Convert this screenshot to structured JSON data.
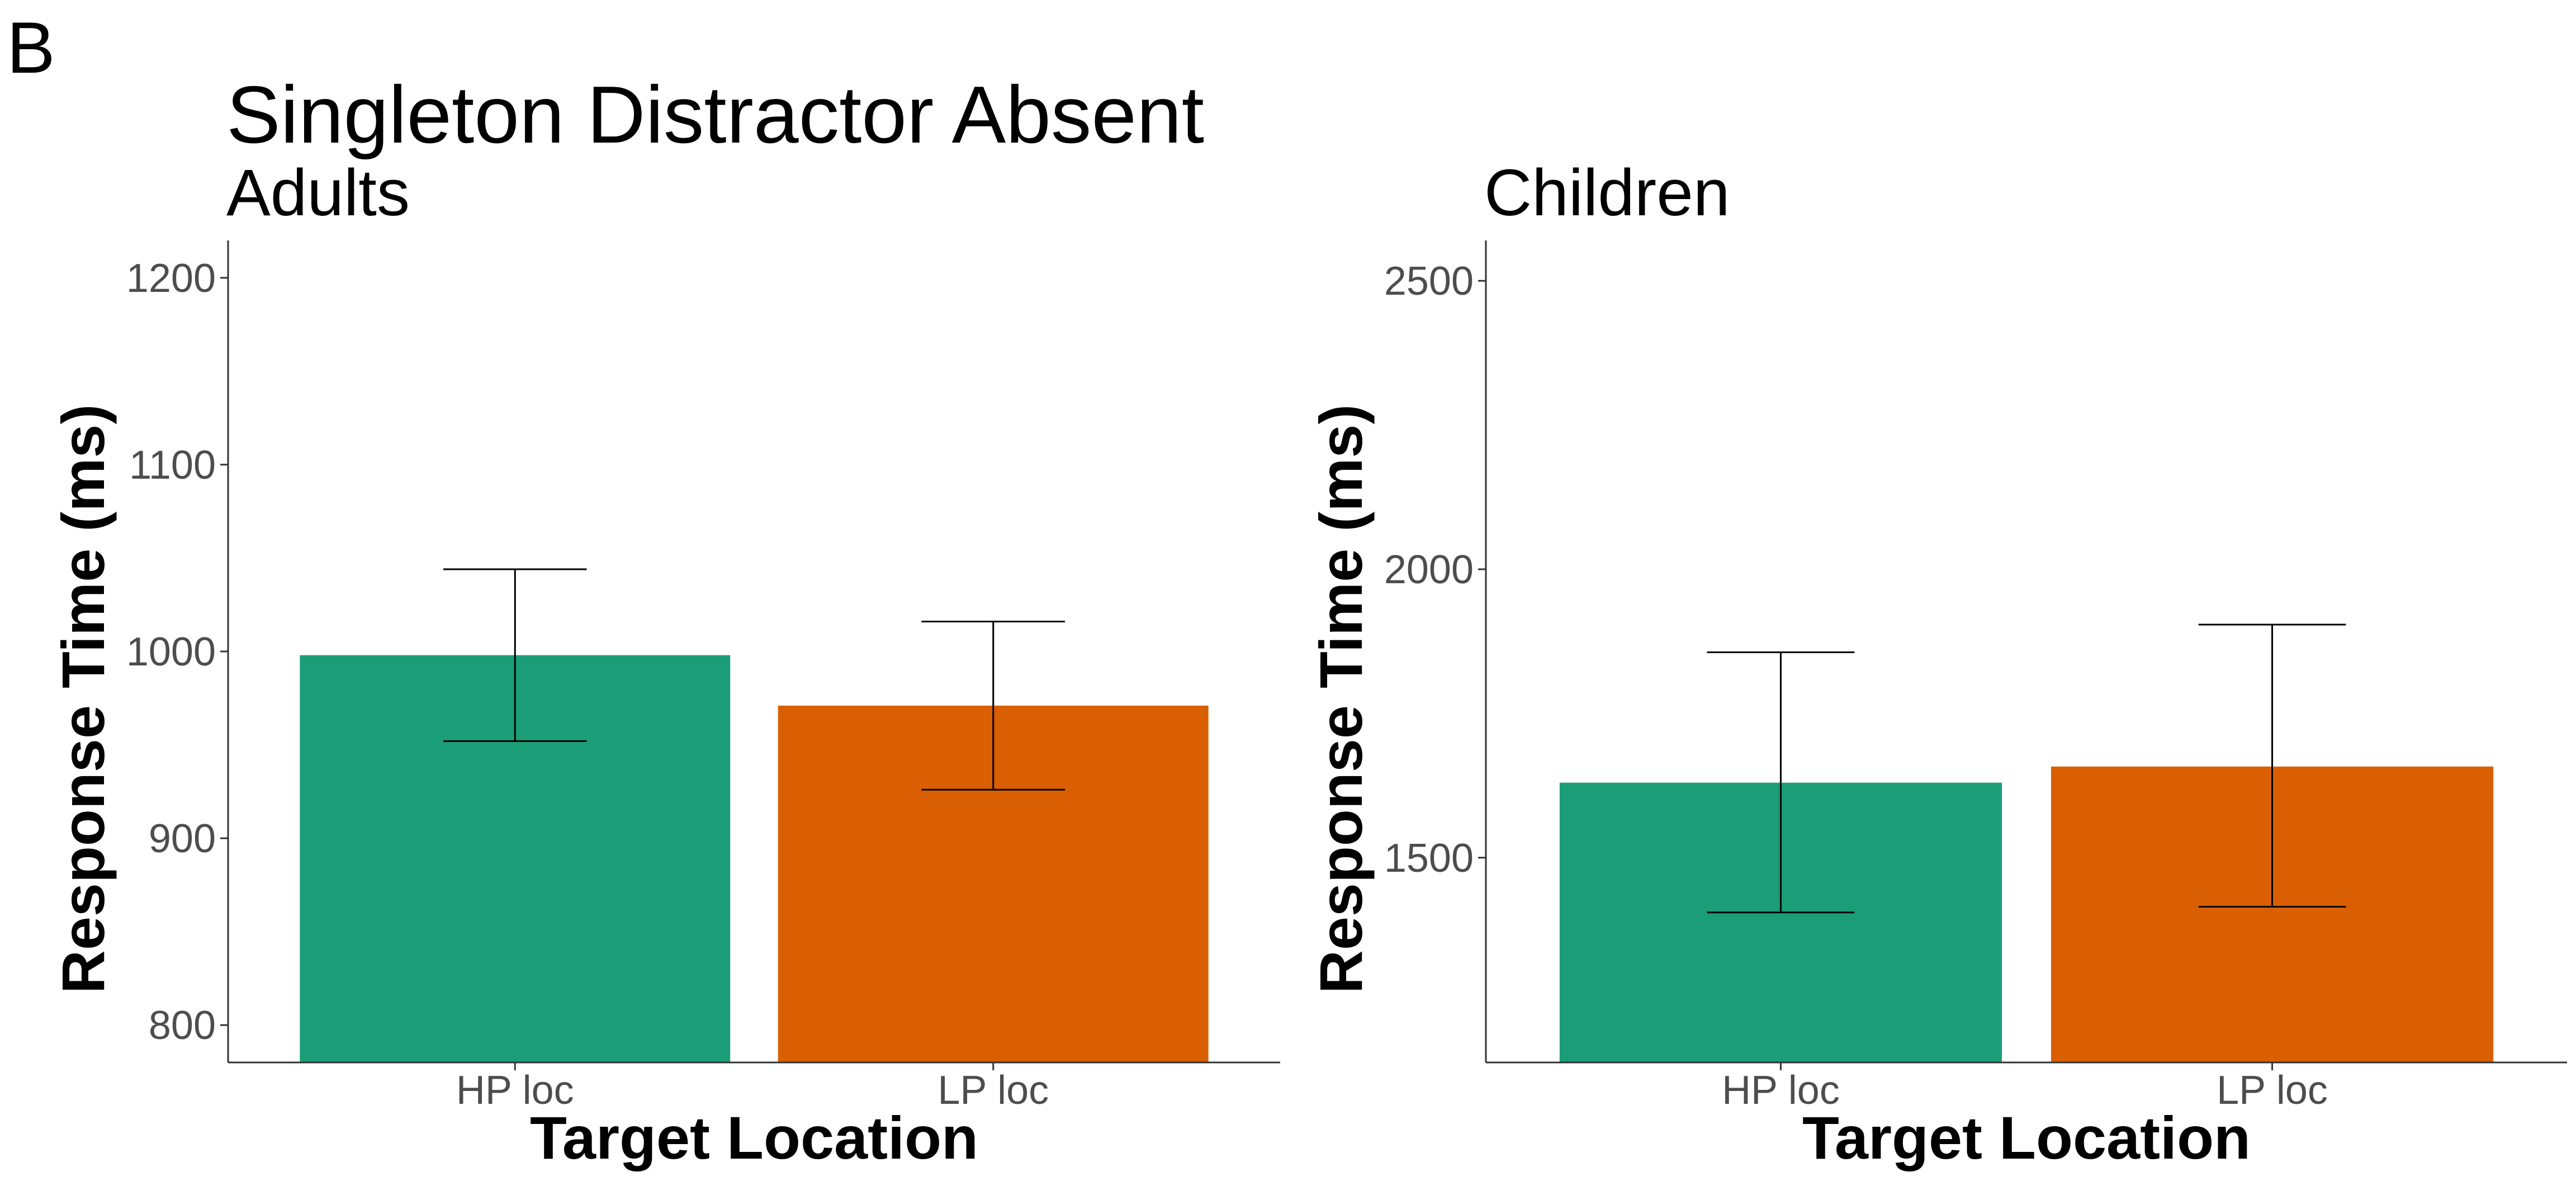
{
  "figure": {
    "panel_letter": "B",
    "title": "Singleton Distractor Absent"
  },
  "chart_data": [
    {
      "type": "bar",
      "title": "Adults",
      "xlabel": "Target Location",
      "ylabel": "Response Time (ms)",
      "categories": [
        "HP loc",
        "LP loc"
      ],
      "values": [
        998,
        971
      ],
      "error_low": [
        952,
        926
      ],
      "error_high": [
        1044,
        1016
      ],
      "colors": [
        "#1b9e77",
        "#d95f02"
      ],
      "ylim": [
        780,
        1220
      ],
      "yticks": [
        800,
        900,
        1000,
        1100,
        1200
      ],
      "grid": false,
      "legend": "none"
    },
    {
      "type": "bar",
      "title": "Children",
      "xlabel": "Target Location",
      "ylabel": "Response Time (ms)",
      "categories": [
        "HP loc",
        "LP loc"
      ],
      "values": [
        1630,
        1658
      ],
      "error_low": [
        1405,
        1415
      ],
      "error_high": [
        1856,
        1904
      ],
      "colors": [
        "#1b9e77",
        "#d95f02"
      ],
      "ylim": [
        1145,
        2570
      ],
      "yticks": [
        1500,
        2000,
        2500
      ],
      "grid": false,
      "legend": "none"
    }
  ]
}
